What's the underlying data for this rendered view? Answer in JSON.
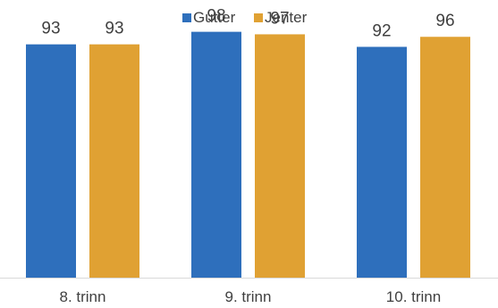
{
  "chart_data": {
    "type": "bar",
    "categories": [
      "8. trinn",
      "9. trinn",
      "10. trinn"
    ],
    "series": [
      {
        "name": "Gutter",
        "values": [
          93,
          98,
          92
        ],
        "color": "#2e6fbc"
      },
      {
        "name": "Jenter",
        "values": [
          93,
          97,
          96
        ],
        "color": "#e0a133"
      }
    ],
    "ylim": [
      0,
      100
    ],
    "grid": false,
    "legend_position": "top-center",
    "show_data_labels": true,
    "axis_color": "#d9d9d9"
  }
}
